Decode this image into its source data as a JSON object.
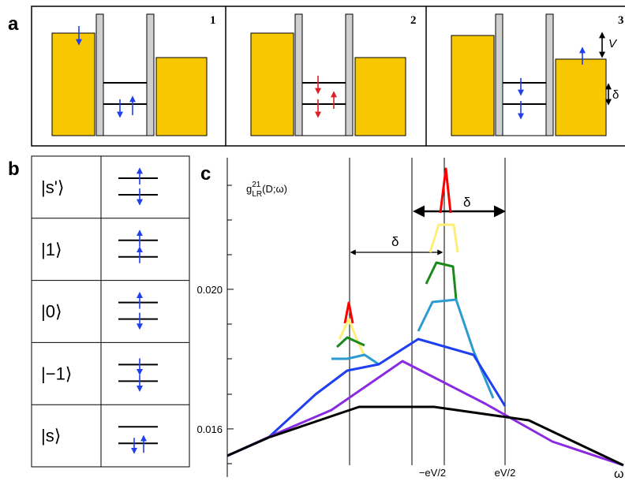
{
  "panel_a": {
    "label": "a",
    "steps": [
      "1",
      "2",
      "3"
    ],
    "bias_label": "V",
    "splitting_label": "δ"
  },
  "panel_b": {
    "label": "b",
    "states": [
      "|s'⟩",
      "|1⟩",
      "|0⟩",
      "|−1⟩",
      "|s⟩"
    ]
  },
  "panel_c": {
    "label": "c",
    "y_label_main": "g",
    "y_label_sup": "21",
    "y_label_sub": "LR",
    "y_label_args": "(D;ω)",
    "ylim": [
      0.01462,
      0.02377
    ],
    "yticks": [
      {
        "value": 0.016,
        "label": "0.016"
      },
      {
        "value": 0.02,
        "label": "0.020"
      }
    ],
    "x_labels": [
      "−eV/2",
      "eV/2",
      "ω"
    ],
    "delta_labels": [
      "δ",
      "δ"
    ]
  }
}
